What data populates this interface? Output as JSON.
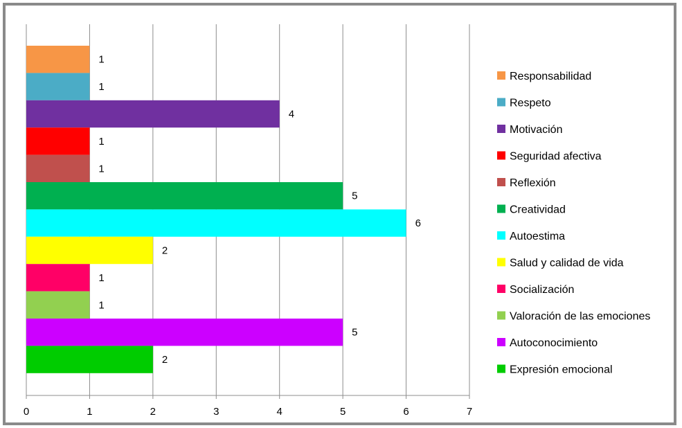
{
  "chart_data": {
    "type": "bar",
    "orientation": "horizontal",
    "categories": [
      "Responsabilidad",
      "Respeto",
      "Motivación",
      "Seguridad afectiva",
      "Reflexión",
      "Creatividad",
      "Autoestima",
      "Salud y calidad de vida",
      "Socialización",
      "Valoración de las emociones",
      "Autoconocimiento",
      "Expresión emocional"
    ],
    "values": [
      1,
      1,
      4,
      1,
      1,
      5,
      6,
      2,
      1,
      1,
      5,
      2
    ],
    "colors": [
      "#F79646",
      "#4BACC6",
      "#7030A0",
      "#FF0000",
      "#C0504D",
      "#00B050",
      "#00FFFF",
      "#FFFF00",
      "#FF0066",
      "#92D050",
      "#CC00FF",
      "#00CC00"
    ],
    "xlim": [
      0,
      7
    ],
    "xticks": [
      "0",
      "1",
      "2",
      "3",
      "4",
      "5",
      "6",
      "7"
    ],
    "grid": "vertical",
    "legend_position": "right",
    "title": "",
    "xlabel": "",
    "ylabel": ""
  }
}
